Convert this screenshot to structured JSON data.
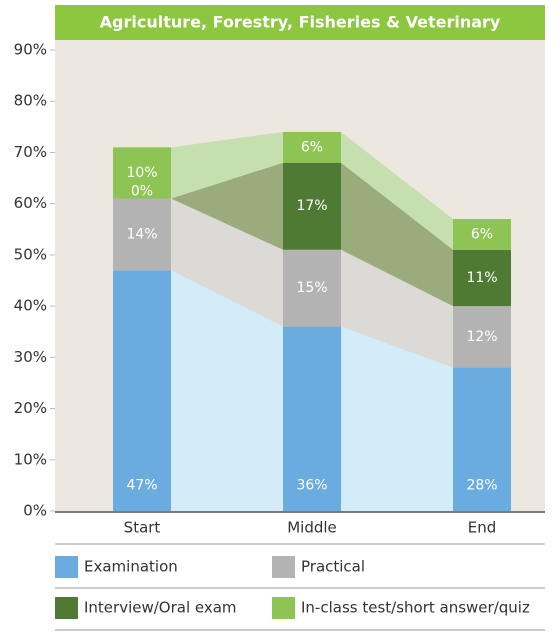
{
  "chart_data": {
    "type": "stacked-bar-area",
    "title": "Agriculture, Forestry, Fisheries & Veterinary",
    "categories": [
      "Start",
      "Middle",
      "End"
    ],
    "series": [
      {
        "name": "Examination",
        "color": "#6aabe0",
        "area_color": "#d2ecf9",
        "values": [
          47,
          36,
          28
        ],
        "value_labels": [
          "47%",
          "36%",
          "28%"
        ]
      },
      {
        "name": "Practical",
        "color": "#b3b3b3",
        "area_color": "#dcdad6",
        "values": [
          14,
          15,
          12
        ],
        "value_labels": [
          "14%",
          "15%",
          "12%"
        ]
      },
      {
        "name": "Interview/Oral exam",
        "color": "#4e7a34",
        "area_color": "#9aab7c",
        "values": [
          0,
          17,
          11
        ],
        "value_labels": [
          "0%",
          "17%",
          "11%"
        ]
      },
      {
        "name": "In-class test/short answer/quiz",
        "color": "#8dc454",
        "area_color": "#c6dfae",
        "values": [
          10,
          6,
          6
        ],
        "value_labels": [
          "10%",
          "6%",
          "6%"
        ]
      }
    ],
    "ylim": [
      0,
      90
    ],
    "yticks": [
      {
        "value": 0,
        "label": "0%"
      },
      {
        "value": 10,
        "label": "10%"
      },
      {
        "value": 20,
        "label": "20%"
      },
      {
        "value": 30,
        "label": "30%"
      },
      {
        "value": 40,
        "label": "40%"
      },
      {
        "value": 50,
        "label": "50%"
      },
      {
        "value": 60,
        "label": "60%"
      },
      {
        "value": 70,
        "label": "70%"
      },
      {
        "value": 80,
        "label": "80%"
      },
      {
        "value": 90,
        "label": "90%"
      }
    ],
    "title_color": "#8dc63f",
    "plot_background": "#ede8df"
  }
}
